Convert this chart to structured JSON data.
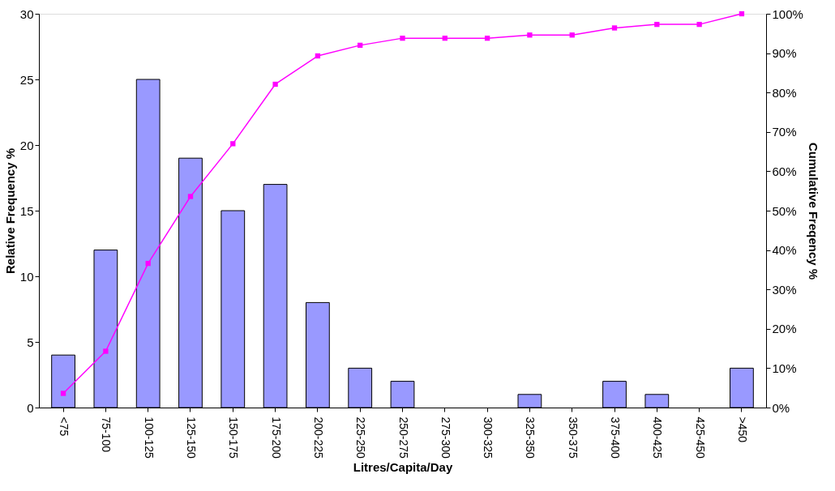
{
  "chart_data": {
    "type": "bar",
    "xlabel": "Litres/Capita/Day",
    "ylabel": "Relative Frequency %",
    "y2label": "Cumulative Freqency %",
    "categories": [
      "<75",
      "75-100",
      "100-125",
      "125-150",
      "150-175",
      "175-200",
      "200-225",
      "225-250",
      "250-275",
      "275-300",
      "300-325",
      "325-350",
      "350-375",
      "375-400",
      "400-425",
      "425-450",
      ">450"
    ],
    "series": [
      {
        "color": "#9999ff",
        "values": [
          4,
          12,
          25,
          19,
          15,
          17,
          8,
          3,
          2,
          0,
          0,
          1,
          0,
          2,
          1,
          0,
          3
        ]
      },
      {
        "type": "line",
        "axis": "y2",
        "color": "#ff00ff",
        "values": [
          3.6,
          14.3,
          36.6,
          53.6,
          67.0,
          82.1,
          89.3,
          92.0,
          93.8,
          93.8,
          93.8,
          94.6,
          94.6,
          96.4,
          97.3,
          97.3,
          100
        ]
      }
    ],
    "ylim": [
      0,
      30
    ],
    "yticks": [
      0,
      5,
      10,
      15,
      20,
      25,
      30
    ],
    "y2lim": [
      0,
      100
    ],
    "y2ticks": [
      {
        "value": 0,
        "label": "0%"
      },
      {
        "value": 10,
        "label": "10%"
      },
      {
        "value": 20,
        "label": "20%"
      },
      {
        "value": 30,
        "label": "30%"
      },
      {
        "value": 40,
        "label": "40%"
      },
      {
        "value": 50,
        "label": "50%"
      },
      {
        "value": 60,
        "label": "60%"
      },
      {
        "value": 70,
        "label": "70%"
      },
      {
        "value": 80,
        "label": "80%"
      },
      {
        "value": 90,
        "label": "90%"
      },
      {
        "value": 100,
        "label": "100%"
      }
    ],
    "marker": "square"
  }
}
